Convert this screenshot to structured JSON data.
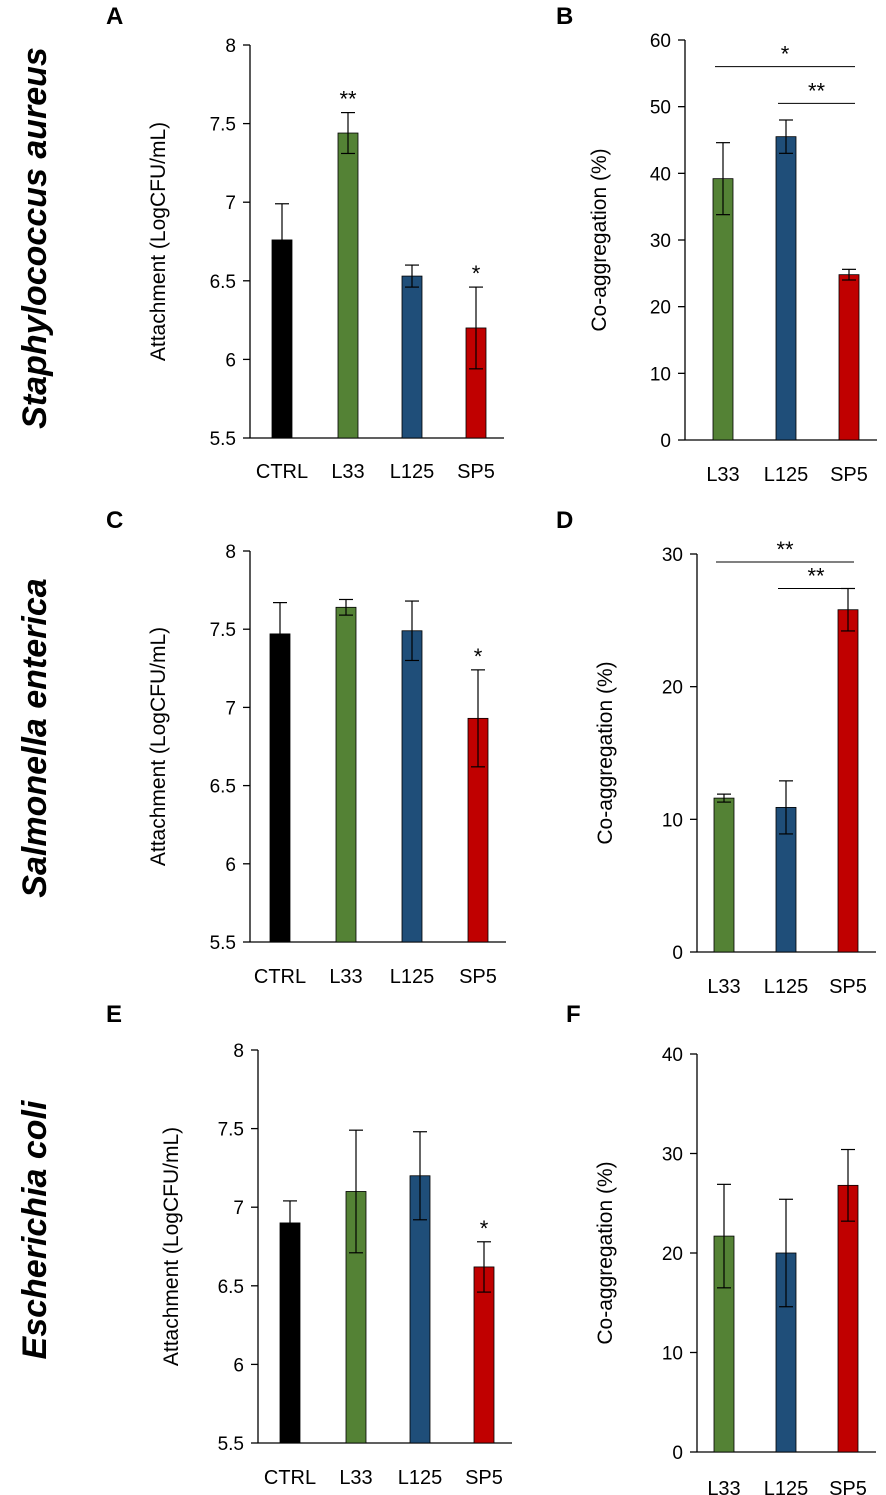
{
  "colors": {
    "CTRL": "#000000",
    "L33": "#548235",
    "L125": "#1f4e79",
    "SP5": "#c00000",
    "axis": "#000000"
  },
  "species": [
    {
      "name": "Staphylococcus aureus"
    },
    {
      "name": "Salmonella enterica"
    },
    {
      "name": "Escherichia coli"
    }
  ],
  "chart_data": [
    {
      "panel": "A",
      "type": "bar",
      "species": "Staphylococcus aureus",
      "ylabel": "Attachment (LogCFU/mL)",
      "ylim": [
        5.5,
        8
      ],
      "yticks": [
        5.5,
        6,
        6.5,
        7,
        7.5,
        8
      ],
      "ytick_labels": [
        "5.5",
        "6",
        "6.5",
        "7",
        "7.5",
        "8"
      ],
      "categories": [
        "CTRL",
        "L33",
        "L125",
        "SP5"
      ],
      "values": [
        6.76,
        7.44,
        6.53,
        6.2
      ],
      "errors": [
        0.23,
        0.13,
        0.07,
        0.26
      ],
      "bar_sig": [
        "",
        "**",
        "",
        "*"
      ],
      "brackets": []
    },
    {
      "panel": "B",
      "type": "bar",
      "species": "Staphylococcus aureus",
      "ylabel": "Co-aggregation (%)",
      "ylim": [
        0,
        60
      ],
      "yticks": [
        0,
        10,
        20,
        30,
        40,
        50,
        60
      ],
      "ytick_labels": [
        "0",
        "10",
        "20",
        "30",
        "40",
        "50",
        "60"
      ],
      "categories": [
        "L33",
        "L125",
        "SP5"
      ],
      "values": [
        39.2,
        45.5,
        24.8
      ],
      "errors": [
        5.4,
        2.5,
        0.8
      ],
      "bar_sig": [
        "",
        "",
        ""
      ],
      "brackets": [
        {
          "from": "L33",
          "to": "SP5",
          "label": "*",
          "y": 56
        },
        {
          "from": "L125",
          "to": "SP5",
          "label": "**",
          "y": 50.5
        }
      ]
    },
    {
      "panel": "C",
      "type": "bar",
      "species": "Salmonella enterica",
      "ylabel": "Attachment (LogCFU/mL)",
      "ylim": [
        5.5,
        8
      ],
      "yticks": [
        5.5,
        6,
        6.5,
        7,
        7.5,
        8
      ],
      "ytick_labels": [
        "5.5",
        "6",
        "6.5",
        "7",
        "7.5",
        "8"
      ],
      "categories": [
        "CTRL",
        "L33",
        "L125",
        "SP5"
      ],
      "values": [
        7.47,
        7.64,
        7.49,
        6.93
      ],
      "errors": [
        0.2,
        0.05,
        0.19,
        0.31
      ],
      "bar_sig": [
        "",
        "",
        "",
        "*"
      ],
      "brackets": []
    },
    {
      "panel": "D",
      "type": "bar",
      "species": "Salmonella enterica",
      "ylabel": "Co-aggregation (%)",
      "ylim": [
        0,
        30
      ],
      "yticks": [
        0,
        10,
        20,
        30
      ],
      "ytick_labels": [
        "0",
        "10",
        "20",
        "30"
      ],
      "categories": [
        "L33",
        "L125",
        "SP5"
      ],
      "values": [
        11.6,
        10.9,
        25.8
      ],
      "errors": [
        0.3,
        2.0,
        1.6
      ],
      "bar_sig": [
        "",
        "",
        ""
      ],
      "brackets": [
        {
          "from": "L33",
          "to": "SP5",
          "label": "**",
          "y": 29.4
        },
        {
          "from": "L125",
          "to": "SP5",
          "label": "**",
          "y": 27.4
        }
      ]
    },
    {
      "panel": "E",
      "type": "bar",
      "species": "Escherichia coli",
      "ylabel": "Attachment (LogCFU/mL)",
      "ylim": [
        5.5,
        8
      ],
      "yticks": [
        5.5,
        6,
        6.5,
        7,
        7.5,
        8
      ],
      "ytick_labels": [
        "5.5",
        "6",
        "6.5",
        "7",
        "7.5",
        "8"
      ],
      "categories": [
        "CTRL",
        "L33",
        "L125",
        "SP5"
      ],
      "values": [
        6.9,
        7.1,
        7.2,
        6.62
      ],
      "errors": [
        0.14,
        0.39,
        0.28,
        0.16
      ],
      "bar_sig": [
        "",
        "",
        "",
        "*"
      ],
      "brackets": []
    },
    {
      "panel": "F",
      "type": "bar",
      "species": "Escherichia coli",
      "ylabel": "Co-aggregation (%)",
      "ylim": [
        0,
        40
      ],
      "yticks": [
        0,
        10,
        20,
        30,
        40
      ],
      "ytick_labels": [
        "0",
        "10",
        "20",
        "30",
        "40"
      ],
      "categories": [
        "L33",
        "L125",
        "SP5"
      ],
      "values": [
        21.7,
        20.0,
        26.8
      ],
      "errors": [
        5.2,
        5.4,
        3.6
      ],
      "bar_sig": [
        "",
        "",
        ""
      ],
      "brackets": []
    }
  ]
}
